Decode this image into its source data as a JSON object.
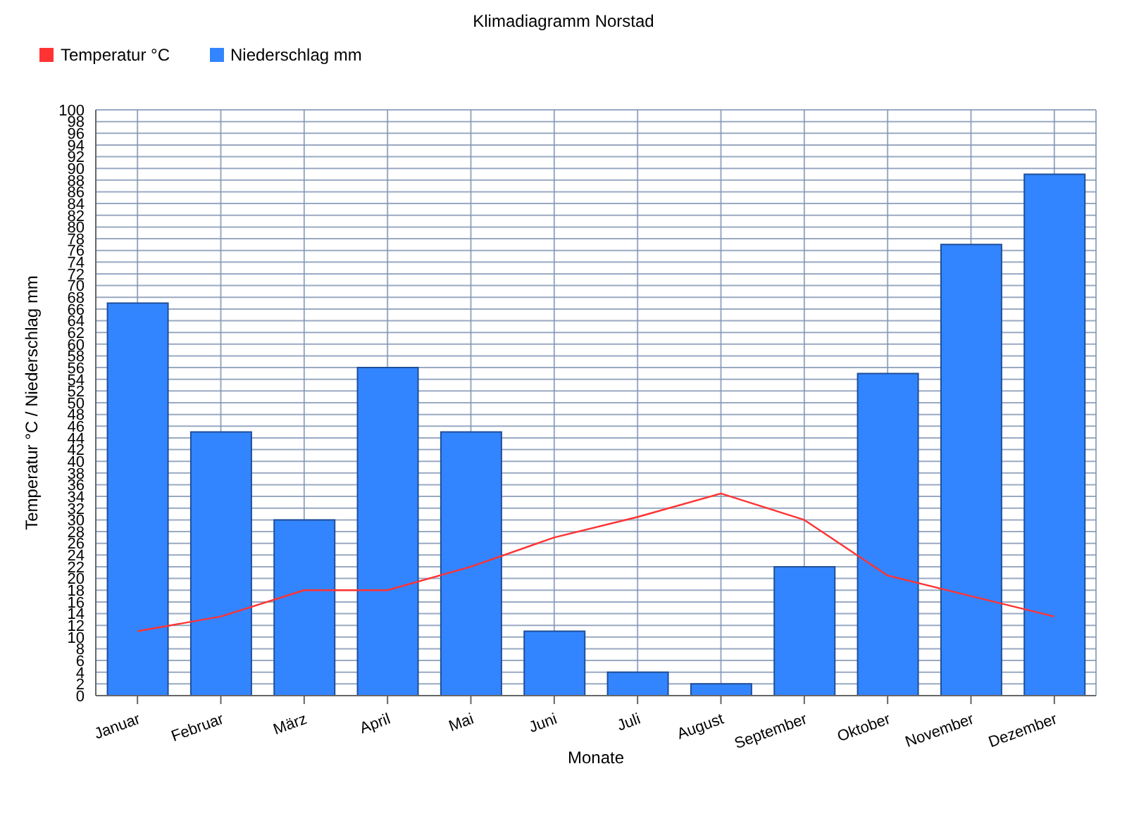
{
  "chart_data": {
    "type": "bar",
    "title": "Klimadiagramm Norstad",
    "xlabel": "Monate",
    "ylabel": "Temperatur °C / Niederschlag mm",
    "categories": [
      "Januar",
      "Februar",
      "März",
      "April",
      "Mai",
      "Juni",
      "Juli",
      "August",
      "September",
      "Oktober",
      "November",
      "Dezember"
    ],
    "series": [
      {
        "name": "Temperatur °C",
        "type": "line",
        "color": "#ff3333",
        "values": [
          11,
          13.5,
          18,
          18,
          22,
          27,
          30.5,
          34.5,
          30,
          20.5,
          17,
          13.5
        ]
      },
      {
        "name": "Niederschlag mm",
        "color": "#3385ff",
        "values": [
          67,
          45,
          30,
          56,
          45,
          11,
          4,
          2,
          22,
          55,
          77,
          89
        ]
      }
    ],
    "ylim": [
      0,
      100
    ],
    "yticks": [
      0,
      2,
      4,
      6,
      8,
      10,
      12,
      14,
      16,
      18,
      20,
      22,
      24,
      26,
      28,
      30,
      32,
      34,
      36,
      38,
      40,
      42,
      44,
      46,
      48,
      50,
      52,
      54,
      56,
      58,
      60,
      62,
      64,
      66,
      68,
      70,
      72,
      74,
      76,
      78,
      80,
      82,
      84,
      86,
      88,
      90,
      92,
      94,
      96,
      98,
      100
    ],
    "grid": true,
    "legend": "top left",
    "marker": "none",
    "line_style": "solid"
  }
}
